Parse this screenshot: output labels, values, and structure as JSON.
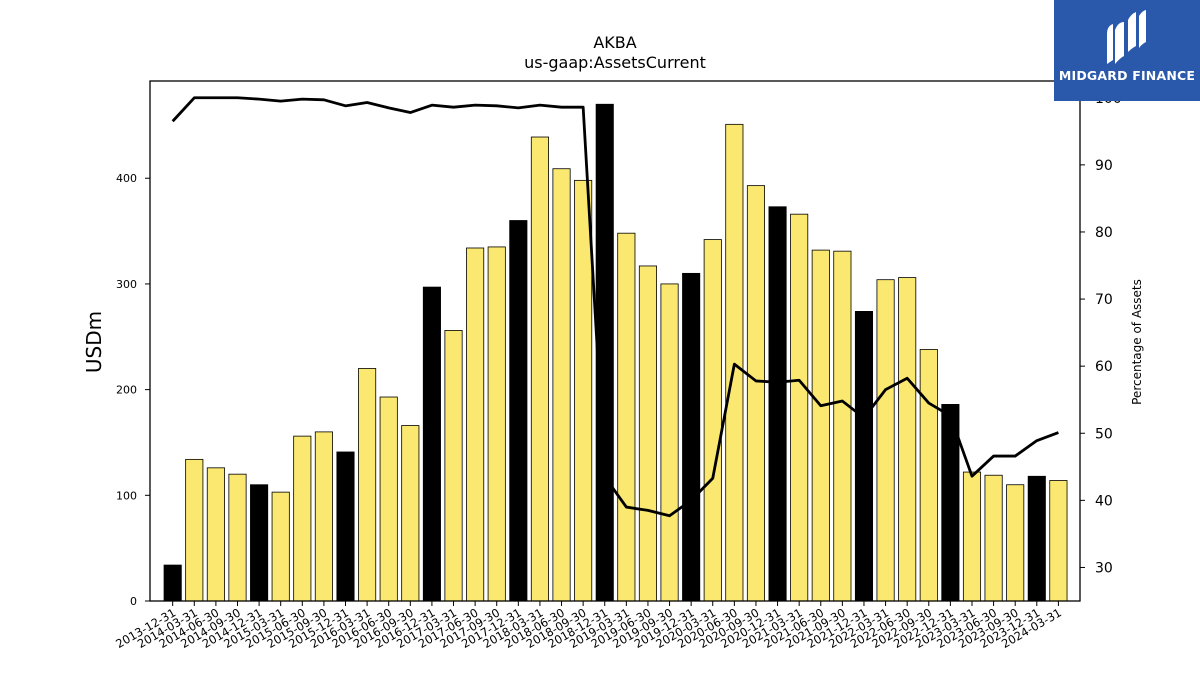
{
  "chart_data": {
    "type": "bar",
    "title": "AKBA",
    "subtitle": "us-gaap:AssetsCurrent",
    "ylabel": "USDm",
    "y2label": "Percentage of Assets",
    "ylim": [
      0,
      492
    ],
    "y2lim": [
      25,
      102.5
    ],
    "yticks": [
      0,
      100,
      200,
      300,
      400
    ],
    "y2ticks": [
      30,
      40,
      50,
      60,
      70,
      80,
      90,
      100
    ],
    "categories": [
      "2013-12-31",
      "2014-03-31",
      "2014-06-30",
      "2014-09-30",
      "2014-12-31",
      "2015-03-31",
      "2015-06-30",
      "2015-09-30",
      "2015-12-31",
      "2016-03-31",
      "2016-06-30",
      "2016-09-30",
      "2016-12-31",
      "2017-03-31",
      "2017-06-30",
      "2017-09-30",
      "2017-12-31",
      "2018-03-31",
      "2018-06-30",
      "2018-09-30",
      "2018-12-31",
      "2019-03-31",
      "2019-06-30",
      "2019-09-30",
      "2019-12-31",
      "2020-03-31",
      "2020-06-30",
      "2020-09-30",
      "2020-12-31",
      "2021-03-31",
      "2021-06-30",
      "2021-09-30",
      "2021-12-31",
      "2022-03-31",
      "2022-06-30",
      "2022-09-30",
      "2022-12-31",
      "2023-03-31",
      "2023-06-30",
      "2023-09-30",
      "2023-12-31",
      "2024-03-31"
    ],
    "series": [
      {
        "kind": "bar",
        "values": [
          34,
          134,
          126,
          120,
          110,
          103,
          156,
          160,
          141,
          220,
          193,
          166,
          297,
          256,
          334,
          335,
          360,
          439,
          409,
          398,
          470,
          348,
          317,
          300,
          310,
          342,
          451,
          393,
          373,
          366,
          332,
          331,
          274,
          304,
          306,
          238,
          186,
          122,
          119,
          110,
          118,
          114
        ],
        "highlight": [
          true,
          false,
          false,
          false,
          true,
          false,
          false,
          false,
          true,
          false,
          false,
          false,
          true,
          false,
          false,
          false,
          true,
          false,
          false,
          false,
          true,
          false,
          false,
          false,
          true,
          false,
          false,
          false,
          true,
          false,
          false,
          false,
          true,
          false,
          false,
          false,
          true,
          false,
          false,
          false,
          true,
          false
        ]
      },
      {
        "kind": "line",
        "axis": "right",
        "values": [
          96.5,
          100,
          100,
          100,
          99.8,
          99.5,
          99.8,
          99.7,
          98.8,
          99.3,
          98.5,
          97.8,
          98.9,
          98.6,
          98.9,
          98.8,
          98.5,
          98.9,
          98.6,
          98.6,
          43.5,
          39,
          38.5,
          37.7,
          40,
          43.3,
          60.3,
          57.8,
          57.6,
          57.9,
          54.1,
          54.8,
          52.3,
          56.5,
          58.2,
          54.5,
          52.6,
          43.6,
          46.6,
          46.6,
          48.9,
          50.1
        ]
      }
    ],
    "colors": {
      "bar_fill": "#fbe870",
      "bar_highlight": "#000000",
      "bar_edge": "#000000",
      "line": "#000000"
    },
    "grid": false
  },
  "logo": {
    "text": "MIDGARD FINANCE",
    "color": "#2a59ac"
  }
}
